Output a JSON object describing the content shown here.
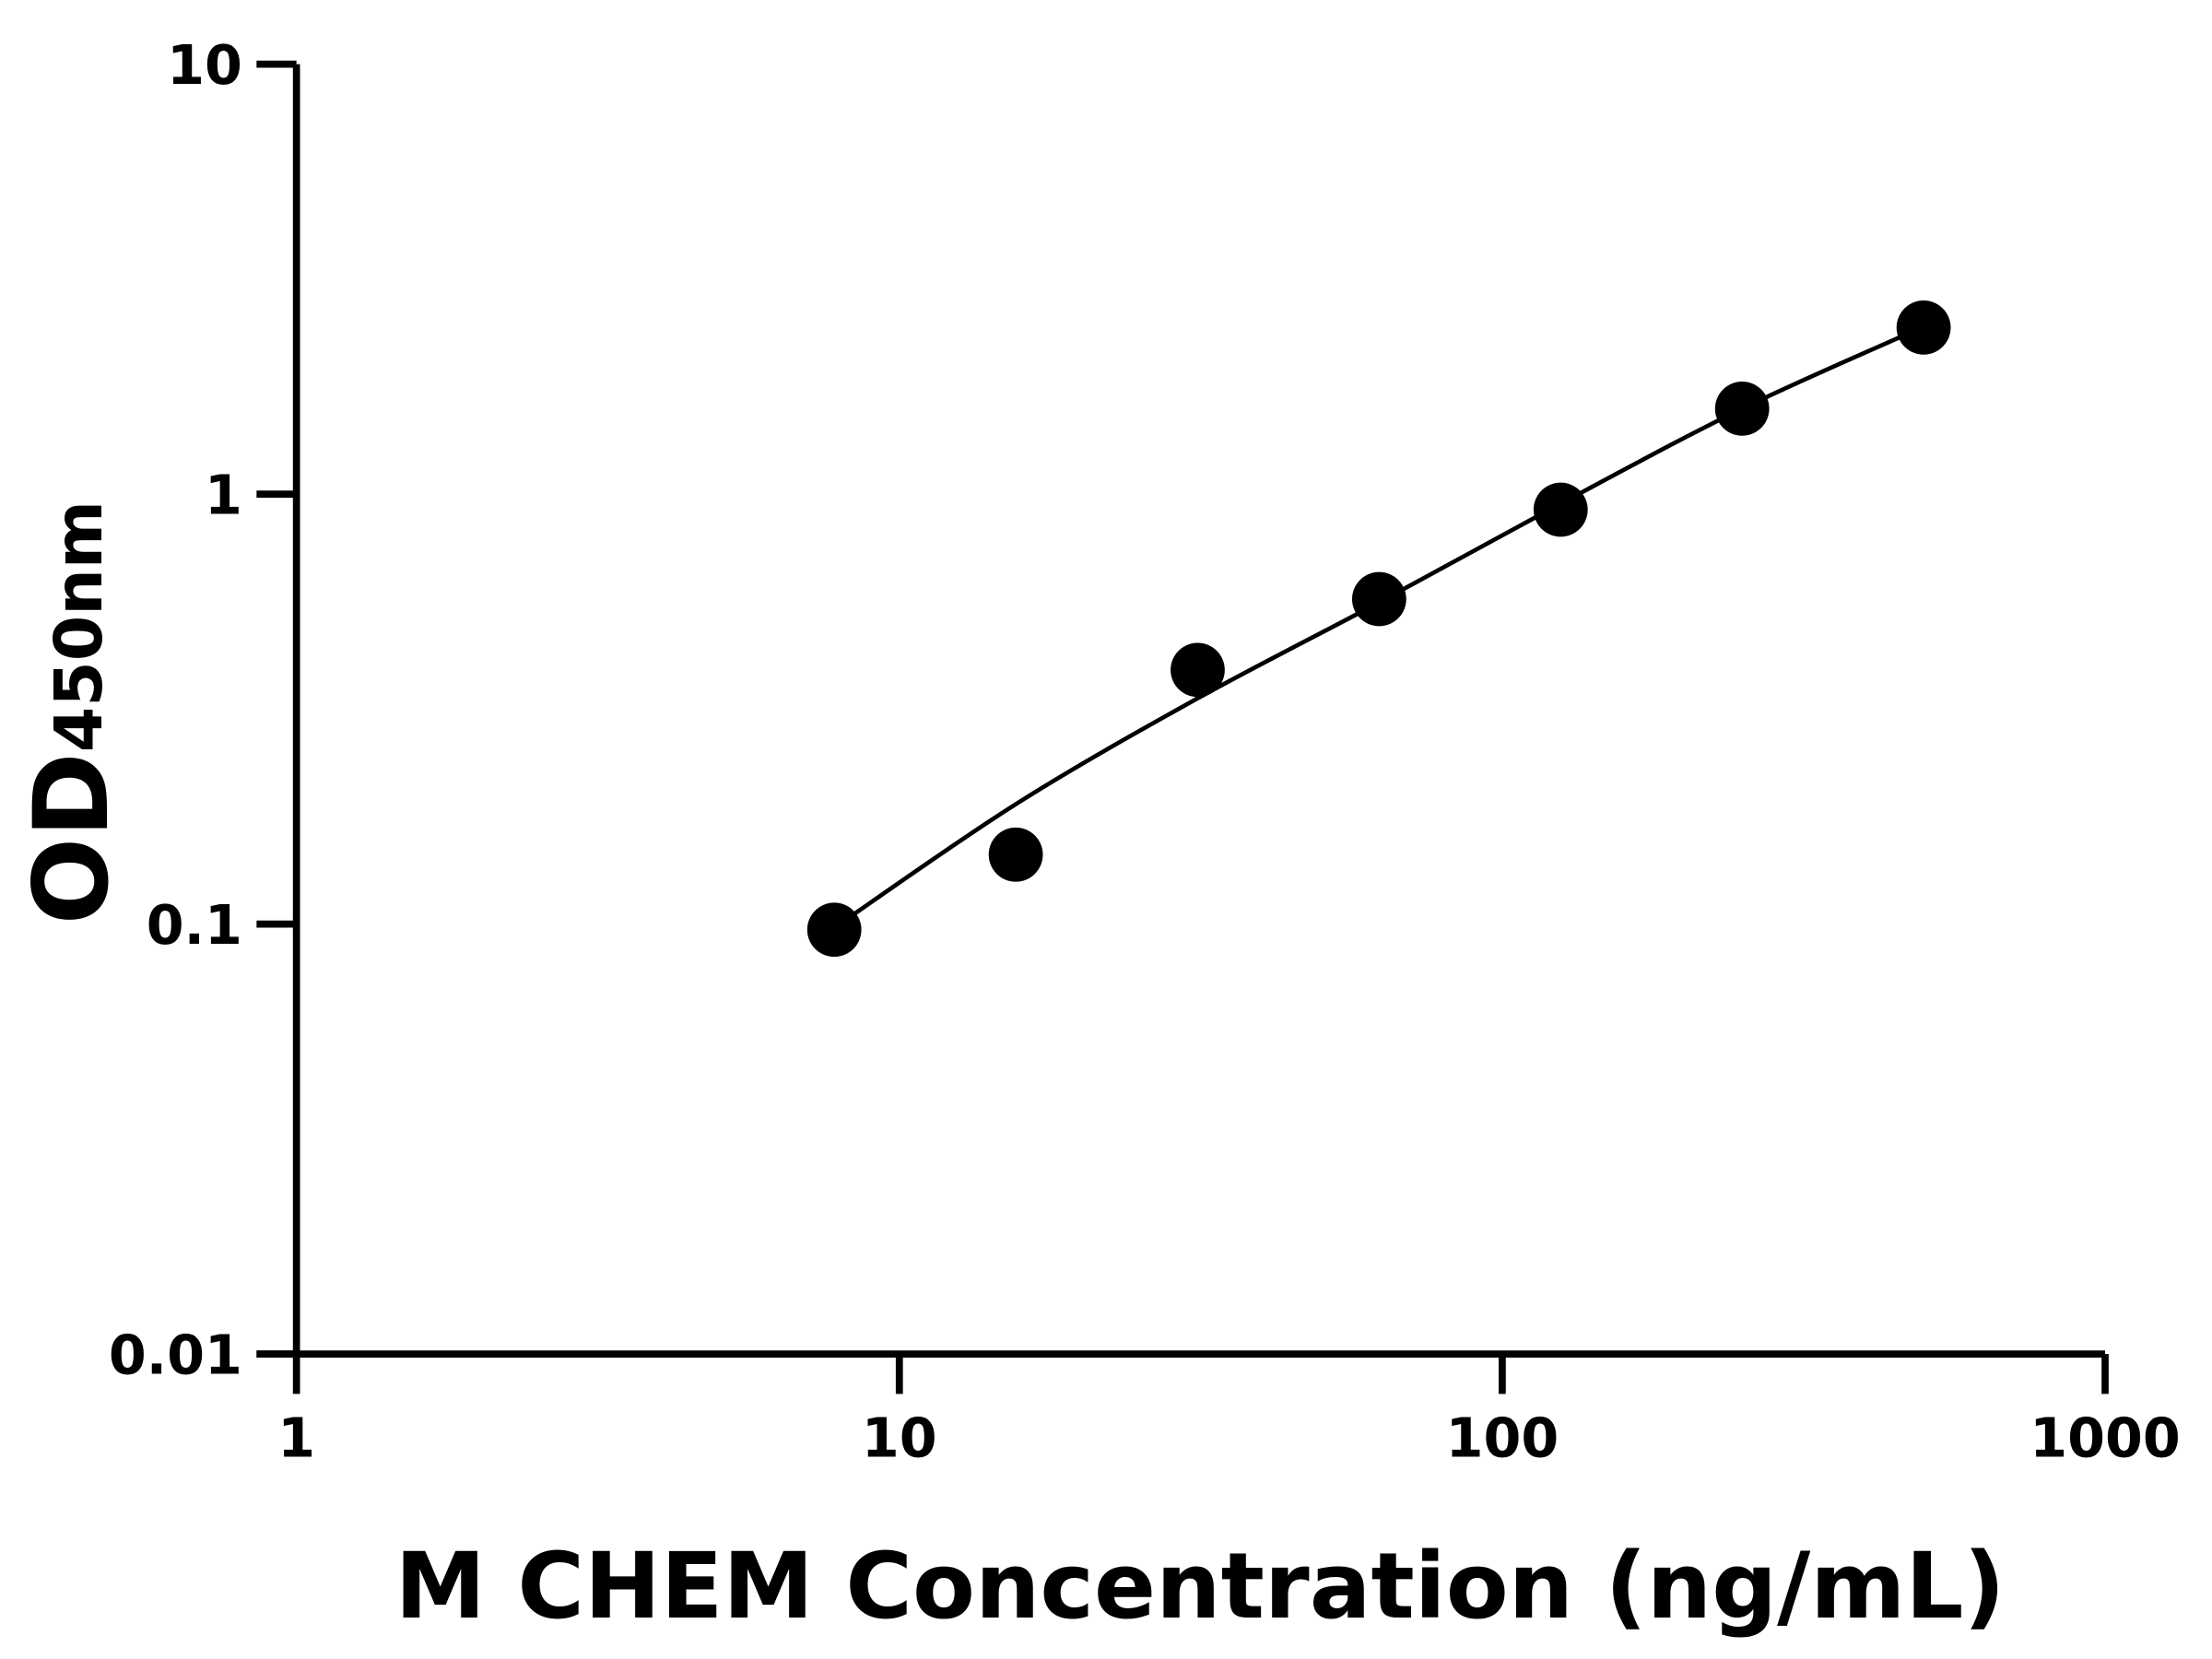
{
  "chart_data": {
    "type": "scatter",
    "title": "",
    "xlabel": "M CHEM Concentration (ng/mL)",
    "ylabel_main": "OD",
    "ylabel_sub": "450nm",
    "x_scale": "log",
    "y_scale": "log",
    "xlim": [
      1,
      1000
    ],
    "ylim": [
      0.01,
      10
    ],
    "x_ticks": [
      "1",
      "10",
      "100",
      "1000"
    ],
    "y_ticks": [
      "0.01",
      "0.1",
      "1",
      "10"
    ],
    "grid": false,
    "legend": "none",
    "series": [
      {
        "x": [
          7.8,
          15.6,
          31.25,
          62.5,
          125,
          250,
          500
        ],
        "y": [
          0.097,
          0.145,
          0.39,
          0.57,
          0.92,
          1.58,
          2.44
        ]
      }
    ],
    "fit_curve": {
      "x": [
        7.8,
        15.6,
        31.25,
        62.5,
        125,
        250,
        500
      ],
      "y": [
        0.098,
        0.19,
        0.335,
        0.56,
        0.95,
        1.58,
        2.45
      ]
    },
    "colors": {
      "marker": "#000000",
      "line": "#000000",
      "axis": "#000000"
    }
  }
}
